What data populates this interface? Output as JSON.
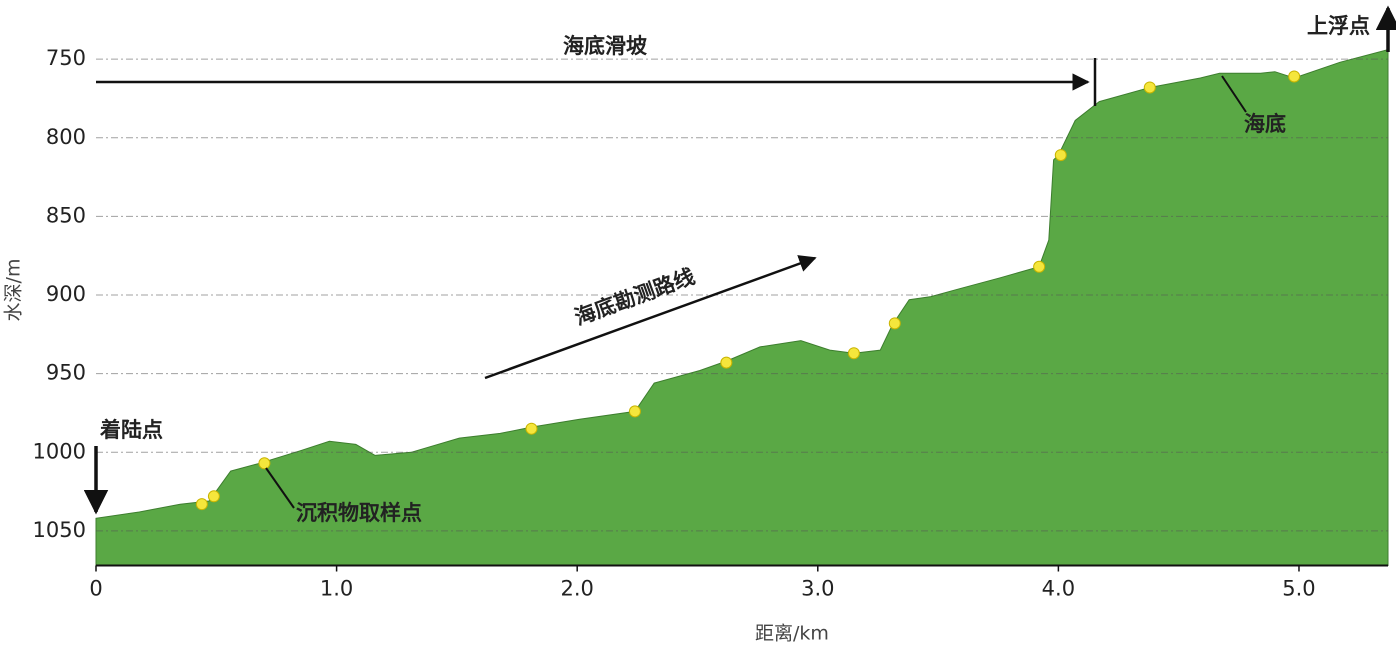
{
  "chart_data": {
    "type": "area",
    "x": [
      0,
      0.18,
      0.35,
      0.47,
      0.56,
      0.68,
      0.85,
      0.97,
      1.08,
      1.16,
      1.31,
      1.51,
      1.68,
      1.81,
      2.01,
      2.24,
      2.32,
      2.51,
      2.62,
      2.76,
      2.93,
      3.05,
      3.15,
      3.26,
      3.31,
      3.38,
      3.47,
      3.59,
      3.76,
      3.92,
      3.96,
      3.98,
      4.0,
      4.07,
      4.17,
      4.38,
      4.59,
      4.67,
      4.84,
      4.9,
      4.98,
      5.17,
      5.37
    ],
    "values": [
      1042,
      1038,
      1033,
      1031,
      1012,
      1007,
      999,
      993,
      995,
      1002,
      1000,
      991,
      988,
      984,
      979,
      974,
      956,
      948,
      942,
      933,
      929,
      935,
      937,
      935,
      919,
      903,
      901,
      896,
      889,
      882,
      865,
      814,
      811,
      789,
      777,
      768,
      762,
      759,
      759,
      758,
      762,
      752,
      744
    ],
    "color": "#5aa845",
    "sample_x": [
      0.44,
      0.49,
      0.7,
      1.81,
      2.24,
      2.62,
      3.15,
      3.32,
      3.92,
      4.01,
      4.38,
      4.98
    ],
    "sample_values": [
      1033,
      1028,
      1007,
      985,
      974,
      943,
      937,
      918,
      882,
      811,
      768,
      761
    ],
    "sample_color": "#f5e63c",
    "xlim": [
      0,
      5.37
    ],
    "ylim": [
      1072,
      741
    ],
    "xticks": [
      0,
      {
        "value": 1,
        "label": "1.0"
      },
      {
        "value": 2,
        "label": "2.0"
      },
      {
        "value": 3,
        "label": "3.0"
      },
      {
        "value": 4,
        "label": "4.0"
      },
      {
        "value": 5,
        "label": "5.0"
      }
    ],
    "yticks": [
      750,
      800,
      850,
      900,
      950,
      1000,
      1050
    ],
    "grid": true,
    "x_label": "距离/km",
    "y_label": "水深/m",
    "annotations": [
      "海底滑坡",
      "海底勘测路线",
      "着陆点",
      "上浮点",
      "沉积物取样点",
      "海底"
    ]
  }
}
